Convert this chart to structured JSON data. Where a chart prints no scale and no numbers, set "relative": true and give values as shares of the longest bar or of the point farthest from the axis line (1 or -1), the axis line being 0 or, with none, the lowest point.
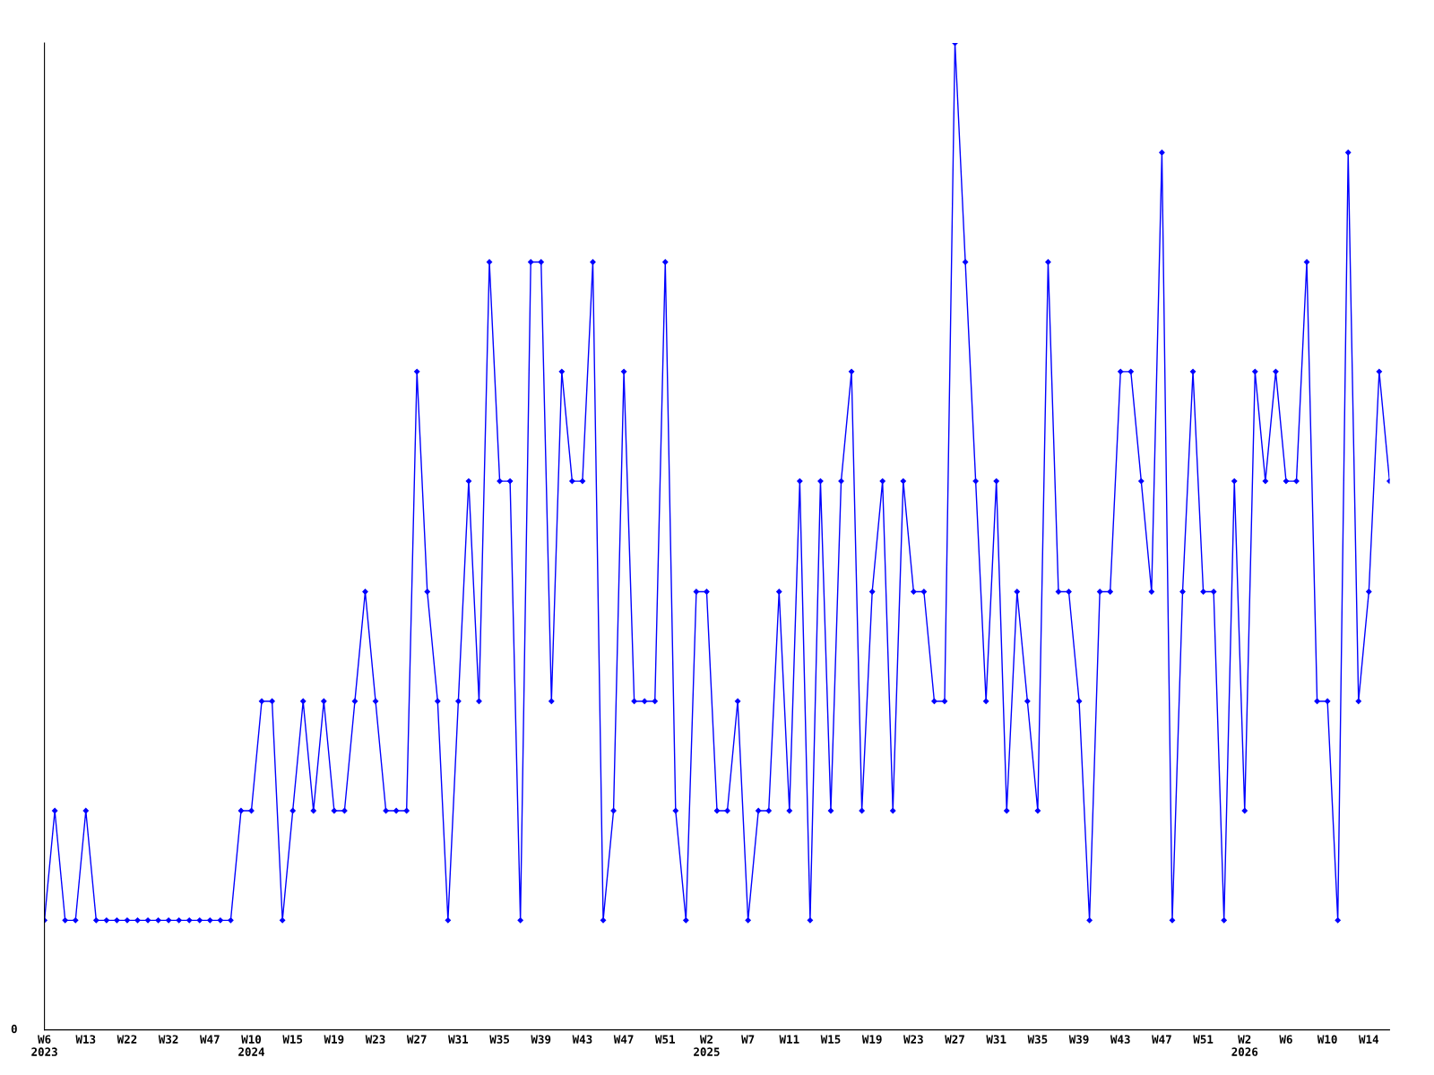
{
  "chart_data": {
    "type": "line",
    "relative": true,
    "marker": "diamond",
    "line_style": "solid",
    "grid": false,
    "legend": false,
    "annotations": [
      "0"
    ],
    "categories": [
      "W6\n2023",
      null,
      null,
      null,
      "W13",
      null,
      null,
      null,
      "W22",
      null,
      null,
      null,
      "W32",
      null,
      null,
      null,
      "W47",
      null,
      null,
      null,
      "W10\n2024",
      null,
      null,
      null,
      "W15",
      null,
      null,
      null,
      "W19",
      null,
      null,
      null,
      "W23",
      null,
      null,
      null,
      "W27",
      null,
      null,
      null,
      "W31",
      null,
      null,
      null,
      "W35",
      null,
      null,
      null,
      "W39",
      null,
      null,
      null,
      "W43",
      null,
      null,
      null,
      "W47",
      null,
      null,
      null,
      "W51",
      null,
      null,
      null,
      "W2\n2025",
      null,
      null,
      null,
      "W7",
      null,
      null,
      null,
      "W11",
      null,
      null,
      null,
      "W15",
      null,
      null,
      null,
      "W19",
      null,
      null,
      null,
      "W23",
      null,
      null,
      null,
      "W27",
      null,
      null,
      null,
      "W31",
      null,
      null,
      null,
      "W35",
      null,
      null,
      null,
      "W39",
      null,
      null,
      null,
      "W43",
      null,
      null,
      null,
      "W47",
      null,
      null,
      null,
      "W51",
      null,
      null,
      null,
      "W2\n2026",
      null,
      null,
      null,
      "W6",
      null,
      null,
      null,
      "W10",
      null,
      null,
      null,
      "W14",
      null,
      null
    ],
    "series": [
      {
        "color": "#0000ff",
        "values": [
          0.111,
          0.222,
          0.111,
          0.111,
          0.222,
          0.111,
          0.111,
          0.111,
          0.111,
          0.111,
          0.111,
          0.111,
          0.111,
          0.111,
          0.111,
          0.111,
          0.111,
          0.111,
          0.111,
          0.222,
          0.222,
          0.333,
          0.333,
          0.111,
          0.222,
          0.333,
          0.222,
          0.333,
          0.222,
          0.222,
          0.333,
          0.444,
          0.333,
          0.222,
          0.222,
          0.222,
          0.667,
          0.444,
          0.333,
          0.111,
          0.333,
          0.556,
          0.333,
          0.778,
          0.556,
          0.556,
          0.111,
          0.778,
          0.778,
          0.333,
          0.667,
          0.556,
          0.556,
          0.778,
          0.111,
          0.222,
          0.667,
          0.333,
          0.333,
          0.333,
          0.778,
          0.222,
          0.111,
          0.444,
          0.444,
          0.222,
          0.222,
          0.333,
          0.111,
          0.222,
          0.222,
          0.444,
          0.222,
          0.556,
          0.111,
          0.556,
          0.222,
          0.556,
          0.667,
          0.222,
          0.444,
          0.556,
          0.222,
          0.556,
          0.444,
          0.444,
          0.333,
          0.333,
          1,
          0.778,
          0.556,
          0.333,
          0.556,
          0.222,
          0.444,
          0.333,
          0.222,
          0.778,
          0.444,
          0.444,
          0.333,
          0.111,
          0.444,
          0.444,
          0.667,
          0.667,
          0.556,
          0.444,
          0.889,
          0.111,
          0.444,
          0.667,
          0.444,
          0.444,
          0.111,
          0.556,
          0.222,
          0.667,
          0.556,
          0.667,
          0.556,
          0.556,
          0.778,
          0.333,
          0.333,
          0.111,
          0.889,
          0.333,
          0.444,
          0.667,
          0.556
        ]
      }
    ]
  }
}
